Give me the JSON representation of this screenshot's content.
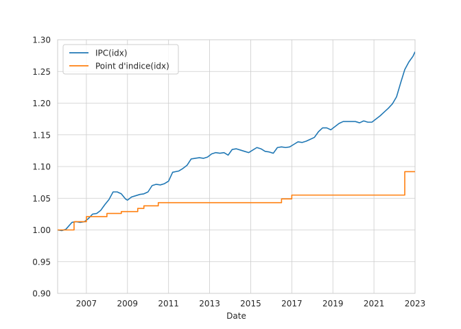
{
  "chart_data": {
    "type": "line",
    "title": "",
    "xlabel": "Date",
    "ylabel": "",
    "xlim": [
      2005.6,
      2023.0
    ],
    "ylim": [
      0.9,
      1.3
    ],
    "x_ticks": [
      2007,
      2009,
      2011,
      2013,
      2015,
      2017,
      2019,
      2021,
      2023
    ],
    "x_tick_labels": [
      "2007",
      "2009",
      "2011",
      "2013",
      "2015",
      "2017",
      "2019",
      "2021",
      "2023"
    ],
    "y_ticks": [
      0.9,
      0.95,
      1.0,
      1.05,
      1.1,
      1.15,
      1.2,
      1.25,
      1.3
    ],
    "y_tick_labels": [
      "0.90",
      "0.95",
      "1.00",
      "1.05",
      "1.10",
      "1.15",
      "1.20",
      "1.25",
      "1.30"
    ],
    "grid": true,
    "legend": "top-left",
    "series": [
      {
        "name": "IPC(idx)",
        "color": "#1f77b4",
        "style": "line",
        "x": [
          2005.6,
          2005.8,
          2006.0,
          2006.3,
          2006.5,
          2006.7,
          2006.9,
          2007.1,
          2007.3,
          2007.5,
          2007.7,
          2007.9,
          2008.1,
          2008.3,
          2008.5,
          2008.7,
          2008.9,
          2009.0,
          2009.2,
          2009.4,
          2009.6,
          2009.8,
          2010.0,
          2010.2,
          2010.4,
          2010.6,
          2010.8,
          2011.0,
          2011.2,
          2011.5,
          2011.7,
          2011.9,
          2012.1,
          2012.3,
          2012.5,
          2012.7,
          2012.9,
          2013.1,
          2013.3,
          2013.5,
          2013.7,
          2013.9,
          2014.1,
          2014.3,
          2014.5,
          2014.7,
          2014.9,
          2015.1,
          2015.3,
          2015.5,
          2015.7,
          2015.9,
          2016.1,
          2016.3,
          2016.5,
          2016.7,
          2016.9,
          2017.1,
          2017.3,
          2017.5,
          2017.7,
          2017.9,
          2018.1,
          2018.3,
          2018.5,
          2018.7,
          2018.9,
          2019.1,
          2019.3,
          2019.5,
          2019.7,
          2019.9,
          2020.1,
          2020.3,
          2020.5,
          2020.7,
          2020.9,
          2021.1,
          2021.3,
          2021.5,
          2021.7,
          2021.9,
          2022.1,
          2022.3,
          2022.5,
          2022.7,
          2022.9,
          2023.0
        ],
        "values": [
          1.0,
          0.999,
          1.001,
          1.012,
          1.013,
          1.012,
          1.013,
          1.018,
          1.025,
          1.026,
          1.031,
          1.04,
          1.048,
          1.06,
          1.06,
          1.057,
          1.049,
          1.047,
          1.052,
          1.054,
          1.056,
          1.057,
          1.06,
          1.07,
          1.072,
          1.071,
          1.073,
          1.077,
          1.091,
          1.093,
          1.097,
          1.102,
          1.112,
          1.113,
          1.114,
          1.113,
          1.115,
          1.12,
          1.122,
          1.121,
          1.122,
          1.118,
          1.127,
          1.128,
          1.126,
          1.124,
          1.122,
          1.126,
          1.13,
          1.128,
          1.124,
          1.123,
          1.121,
          1.13,
          1.131,
          1.13,
          1.131,
          1.135,
          1.139,
          1.138,
          1.14,
          1.143,
          1.146,
          1.155,
          1.161,
          1.161,
          1.158,
          1.163,
          1.168,
          1.171,
          1.171,
          1.171,
          1.171,
          1.169,
          1.172,
          1.17,
          1.17,
          1.175,
          1.18,
          1.186,
          1.192,
          1.199,
          1.21,
          1.232,
          1.253,
          1.265,
          1.274,
          1.281
        ]
      },
      {
        "name": "Point d'indice(idx)",
        "color": "#ff7f0e",
        "style": "step",
        "x": [
          2005.6,
          2006.4,
          2007.0,
          2008.0,
          2008.7,
          2009.5,
          2009.8,
          2010.5,
          2016.5,
          2017.0,
          2022.5,
          2023.0
        ],
        "values": [
          1.0,
          1.013,
          1.021,
          1.026,
          1.029,
          1.034,
          1.038,
          1.043,
          1.049,
          1.055,
          1.092,
          1.092
        ]
      }
    ]
  }
}
